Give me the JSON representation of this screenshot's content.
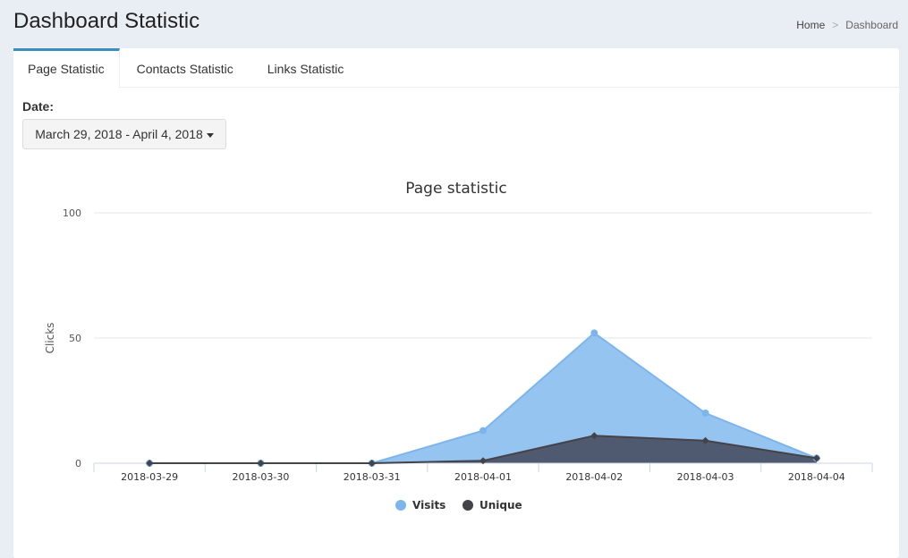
{
  "header": {
    "title": "Dashboard Statistic",
    "breadcrumb": [
      "Home",
      "Dashboard"
    ],
    "separator": ">"
  },
  "tabs": [
    {
      "label": "Page Statistic",
      "active": true
    },
    {
      "label": "Contacts Statistic"
    },
    {
      "label": "Links Statistic"
    }
  ],
  "filter": {
    "label": "Date:",
    "value": "March 29, 2018 - April 4, 2018"
  },
  "colors": {
    "visits": "#7cb5ec",
    "unique": "#434348",
    "accent": "#3c8dbc"
  },
  "chart_data": {
    "type": "area",
    "title": "Page statistic",
    "xlabel": "",
    "ylabel": "Clicks",
    "ylim": [
      0,
      100
    ],
    "yticks": [
      "0",
      "50",
      "100"
    ],
    "grid": true,
    "legend": "bottom-center",
    "categories": [
      "2018-03-29",
      "2018-03-30",
      "2018-03-31",
      "2018-04-01",
      "2018-04-02",
      "2018-04-03",
      "2018-04-04"
    ],
    "series": [
      {
        "name": "Visits",
        "values": [
          0,
          0,
          0,
          13,
          52,
          20,
          2
        ]
      },
      {
        "name": "Unique",
        "values": [
          0,
          0,
          0,
          1,
          11,
          9,
          2
        ]
      }
    ]
  }
}
